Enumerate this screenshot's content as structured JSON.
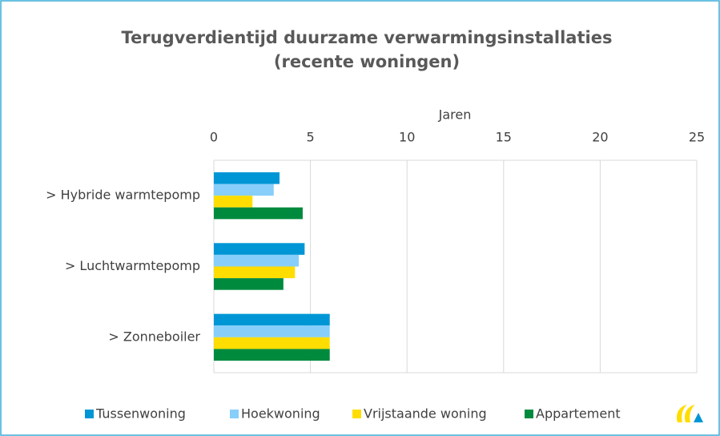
{
  "chart_data": {
    "type": "bar",
    "orientation": "horizontal",
    "title": [
      "Terugverdientijd duurzame verwarmingsinstallaties",
      "(recente woningen)"
    ],
    "x_label": "Jaren",
    "categories": [
      "> Hybride warmtepomp",
      "> Luchtwarmtepomp",
      "> Zonneboiler"
    ],
    "series": [
      {
        "name": "Tussenwoning",
        "color": "#0096d6",
        "values": [
          3.4,
          4.7,
          6.0
        ]
      },
      {
        "name": "Hoekwoning",
        "color": "#87cefa",
        "values": [
          3.1,
          4.4,
          6.0
        ]
      },
      {
        "name": "Vrijstaande woning",
        "color": "#ffdd00",
        "values": [
          2.0,
          4.2,
          6.0
        ]
      },
      {
        "name": "Appartement",
        "color": "#008a3e",
        "values": [
          4.6,
          3.6,
          6.0
        ]
      }
    ],
    "xlim": [
      0,
      25
    ],
    "xticks": [
      0,
      5,
      10,
      15,
      20,
      25
    ],
    "grid": true,
    "legend": "bottom"
  }
}
